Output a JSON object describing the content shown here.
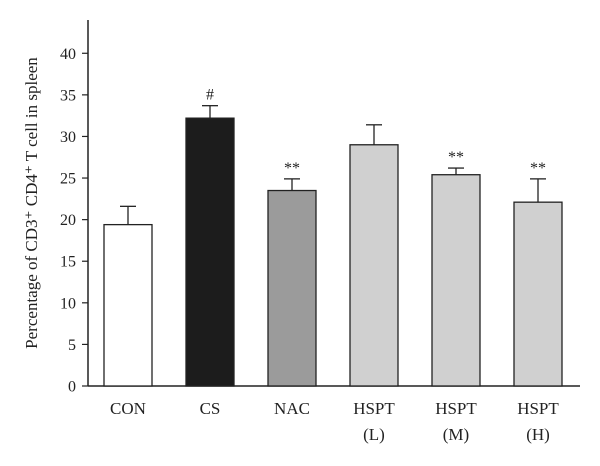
{
  "chart_data": {
    "type": "bar",
    "categories": [
      "CON",
      "CS",
      "NAC",
      "HSPT (L)",
      "HSPT (M)",
      "HSPT (H)"
    ],
    "category_lines": [
      [
        "CON"
      ],
      [
        "CS"
      ],
      [
        "NAC"
      ],
      [
        "HSPT",
        "(L)"
      ],
      [
        "HSPT",
        "(M)"
      ],
      [
        "HSPT",
        "(H)"
      ]
    ],
    "values": [
      19.4,
      32.2,
      23.5,
      29.0,
      25.4,
      22.1
    ],
    "errors": [
      2.2,
      1.5,
      1.4,
      2.4,
      0.8,
      2.8
    ],
    "annotations": [
      "",
      "#",
      "**",
      "",
      "**",
      "**"
    ],
    "bar_colors": [
      "#ffffff",
      "#1c1c1c",
      "#9b9b9b",
      "#d0d0d0",
      "#d0d0d0",
      "#d0d0d0"
    ],
    "ylabel": "Percentage of CD3⁺ CD4⁺ T cell in spleen",
    "yticks": [
      0,
      5,
      10,
      15,
      20,
      25,
      30,
      35,
      40
    ],
    "ylim": [
      0,
      44
    ],
    "grid": false
  }
}
